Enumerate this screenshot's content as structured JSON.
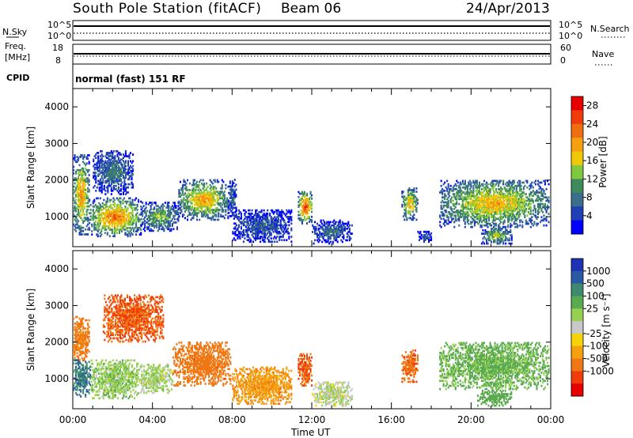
{
  "header": {
    "station": "South Pole Station (fitACF)",
    "beam": "Beam 06",
    "date": "24/Apr/2013"
  },
  "noise_panel": {
    "left_label": "N.Sky",
    "right_label": "N.Search",
    "ticks": [
      "10^5",
      "10^0"
    ]
  },
  "freq_panel": {
    "left_label_1": "Freq.",
    "left_label_2": "[MHz]",
    "left_ticks": [
      "18",
      "8"
    ],
    "right_label": "Nave",
    "right_ticks": [
      "60",
      "0"
    ]
  },
  "cpid": {
    "label": "CPID",
    "text": "normal (fast) 151 RF"
  },
  "colors": {
    "power": [
      "#0000ff",
      "#1f3fb4",
      "#3a6e8c",
      "#3f8a5a",
      "#7fc83f",
      "#f0c80a",
      "#f5a00f",
      "#f06e0f",
      "#f03c0a",
      "#e60000"
    ],
    "velocity": [
      "#1e32b4",
      "#2a5aa5",
      "#3f8a6e",
      "#5aaa50",
      "#96d050",
      "#c8c8c8",
      "#f5d20a",
      "#f5a00f",
      "#f07814",
      "#f03c0a",
      "#e60000"
    ]
  },
  "chart_data": [
    {
      "type": "heatmap",
      "panel": "power",
      "ylabel": "Slant Range [km]",
      "yticks": [
        "1000",
        "2000",
        "3000",
        "4000"
      ],
      "ylim": [
        180,
        4500
      ],
      "xlim_hours": [
        0,
        24
      ],
      "colorbar": {
        "label": "Power [dB]",
        "ticks": [
          "4",
          "8",
          "12",
          "16",
          "20",
          "24",
          "28"
        ],
        "range": [
          0,
          30
        ]
      },
      "features": [
        {
          "t0": 0.0,
          "t1": 0.8,
          "r0": 500,
          "r1": 2700,
          "value": 22
        },
        {
          "t0": 0.8,
          "t1": 3.4,
          "r0": 450,
          "r1": 1500,
          "value": 24
        },
        {
          "t0": 1.0,
          "t1": 3.0,
          "r0": 1600,
          "r1": 2800,
          "value": 10
        },
        {
          "t0": 3.4,
          "t1": 5.3,
          "r0": 600,
          "r1": 1400,
          "value": 14
        },
        {
          "t0": 5.3,
          "t1": 7.8,
          "r0": 900,
          "r1": 2000,
          "value": 21
        },
        {
          "t0": 7.8,
          "t1": 8.2,
          "r0": 1000,
          "r1": 2000,
          "value": 8
        },
        {
          "t0": 8.0,
          "t1": 11.0,
          "r0": 300,
          "r1": 1200,
          "value": 7
        },
        {
          "t0": 11.3,
          "t1": 12.0,
          "r0": 800,
          "r1": 1700,
          "value": 27
        },
        {
          "t0": 12.0,
          "t1": 14.0,
          "r0": 250,
          "r1": 900,
          "value": 8
        },
        {
          "t0": 16.5,
          "t1": 17.3,
          "r0": 900,
          "r1": 1800,
          "value": 20
        },
        {
          "t0": 17.3,
          "t1": 18.0,
          "r0": 300,
          "r1": 600,
          "value": 6
        },
        {
          "t0": 18.4,
          "t1": 23.9,
          "r0": 700,
          "r1": 2000,
          "value": 20
        },
        {
          "t0": 20.5,
          "t1": 22.0,
          "r0": 250,
          "r1": 700,
          "value": 16
        }
      ]
    },
    {
      "type": "heatmap",
      "panel": "velocity",
      "ylabel": "Slant Range [km]",
      "yticks": [
        "1000",
        "2000",
        "3000",
        "4000"
      ],
      "ylim": [
        180,
        4500
      ],
      "xlim_hours": [
        0,
        24
      ],
      "xticks": [
        "00:00",
        "04:00",
        "08:00",
        "12:00",
        "16:00",
        "20:00",
        "00:00"
      ],
      "xlabel": "Time UT",
      "colorbar": {
        "label": "Velocity [m s⁻¹]",
        "ticks": [
          "1000",
          "500",
          "100",
          "25",
          "-25",
          "-100",
          "-500",
          "-1000"
        ]
      },
      "features": [
        {
          "t0": 0.0,
          "t1": 0.9,
          "r0": 500,
          "r1": 1500,
          "value": 600
        },
        {
          "t0": 0.0,
          "t1": 0.8,
          "r0": 1500,
          "r1": 2700,
          "value": -150
        },
        {
          "t0": 0.9,
          "t1": 3.3,
          "r0": 450,
          "r1": 1500,
          "value": 80
        },
        {
          "t0": 1.5,
          "t1": 4.5,
          "r0": 2000,
          "r1": 3300,
          "value": -300
        },
        {
          "t0": 3.3,
          "t1": 5.0,
          "r0": 600,
          "r1": 1400,
          "value": 60
        },
        {
          "t0": 5.0,
          "t1": 7.9,
          "r0": 800,
          "r1": 2000,
          "value": -200
        },
        {
          "t0": 8.0,
          "t1": 11.0,
          "r0": 300,
          "r1": 1300,
          "value": -80
        },
        {
          "t0": 11.3,
          "t1": 12.0,
          "r0": 800,
          "r1": 1700,
          "value": -300
        },
        {
          "t0": 12.0,
          "t1": 14.0,
          "r0": 250,
          "r1": 900,
          "value": 50
        },
        {
          "t0": 16.5,
          "t1": 17.3,
          "r0": 900,
          "r1": 1800,
          "value": -250
        },
        {
          "t0": 18.4,
          "t1": 23.9,
          "r0": 700,
          "r1": 2000,
          "value": 120
        },
        {
          "t0": 20.3,
          "t1": 22.0,
          "r0": 250,
          "r1": 700,
          "value": 200
        }
      ]
    }
  ]
}
